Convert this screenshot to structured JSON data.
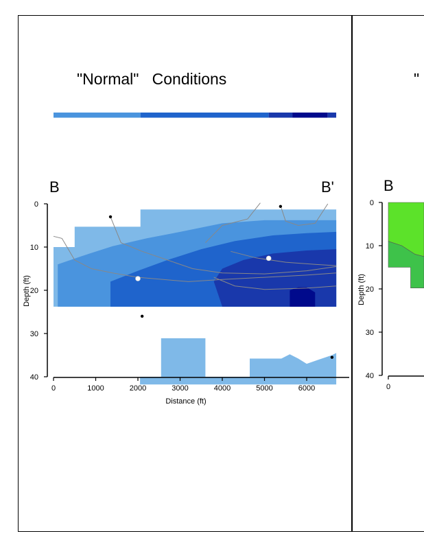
{
  "left_panel": {
    "title": "\"Normal\"   Conditions",
    "section_start": "B",
    "section_end": "B'"
  },
  "right_panel": {
    "title_fragment": "\"",
    "section_start": "B"
  },
  "colors": {
    "light": "#7fb9e8",
    "mid": "#4a94de",
    "blue": "#1f64cc",
    "dark": "#1938ab",
    "navy": "#000a8c",
    "contour": "#888888",
    "green_light": "#5ce22a",
    "green_dark": "#3ec24a"
  },
  "legend_bar": [
    {
      "color": "#4a94de",
      "from": 0,
      "to": 2060
    },
    {
      "color": "#1f64cc",
      "from": 2060,
      "to": 5100
    },
    {
      "color": "#1938ab",
      "from": 5100,
      "to": 5660
    },
    {
      "color": "#000a8c",
      "from": 5660,
      "to": 6500
    },
    {
      "color": "#1938ab",
      "from": 6500,
      "to": 6700
    }
  ],
  "chart_data": [
    {
      "type": "heatmap",
      "title": "\"Normal\"   Conditions",
      "xlabel": "Distance   (ft)",
      "ylabel": "Depth  (ft)",
      "xlim": [
        0,
        7000
      ],
      "ylim": [
        40,
        0
      ],
      "x_ticks": [
        "0",
        "1000",
        "2000",
        "3000",
        "4000",
        "5000",
        "6000"
      ],
      "y_ticks": [
        "0",
        "10",
        "20",
        "30",
        "40"
      ],
      "regions": [
        {
          "level": "light",
          "polygon": [
            [
              0,
              10
            ],
            [
              500,
              10
            ],
            [
              500,
              5.3
            ],
            [
              2060,
              5.3
            ],
            [
              2060,
              1.3
            ],
            [
              6700,
              1.3
            ],
            [
              6700,
              23.8
            ],
            [
              0,
              23.8
            ]
          ]
        },
        {
          "level": "mid",
          "polygon": [
            [
              100,
              23.8
            ],
            [
              100,
              14
            ],
            [
              700,
              12
            ],
            [
              1400,
              9.8
            ],
            [
              2200,
              8
            ],
            [
              3000,
              6.5
            ],
            [
              4000,
              4.5
            ],
            [
              5000,
              3.8
            ],
            [
              6000,
              3.8
            ],
            [
              6700,
              3.8
            ],
            [
              6700,
              23.8
            ]
          ]
        },
        {
          "level": "blue",
          "polygon": [
            [
              1350,
              23.8
            ],
            [
              1350,
              18
            ],
            [
              2000,
              15.5
            ],
            [
              2700,
              13
            ],
            [
              3500,
              10.5
            ],
            [
              4300,
              8.6
            ],
            [
              5200,
              7.3
            ],
            [
              6000,
              6.8
            ],
            [
              6700,
              6.5
            ],
            [
              6700,
              23.8
            ]
          ]
        },
        {
          "level": "dark",
          "polygon": [
            [
              4000,
              23.8
            ],
            [
              3800,
              18
            ],
            [
              4000,
              15
            ],
            [
              4500,
              13
            ],
            [
              5200,
              11.5
            ],
            [
              6000,
              10.8
            ],
            [
              6700,
              10.5
            ],
            [
              6700,
              23.8
            ]
          ]
        },
        {
          "level": "navy",
          "polygon": [
            [
              5600,
              23.8
            ],
            [
              5600,
              20
            ],
            [
              5800,
              19.3
            ],
            [
              6000,
              19.3
            ],
            [
              6200,
              20.5
            ],
            [
              6200,
              23.8
            ]
          ]
        },
        {
          "level": "light",
          "polygon": [
            [
              2050,
              40
            ],
            [
              2050,
              41.8
            ],
            [
              6700,
              41.8
            ],
            [
              6700,
              34.5
            ],
            [
              6600,
              35
            ],
            [
              6300,
              36
            ],
            [
              6000,
              37
            ],
            [
              5800,
              35.8
            ],
            [
              5600,
              34.8
            ],
            [
              5400,
              35.8
            ],
            [
              4650,
              35.8
            ],
            [
              4650,
              40
            ],
            [
              3600,
              40
            ],
            [
              3600,
              31.1
            ],
            [
              2550,
              31.1
            ],
            [
              2550,
              40
            ]
          ]
        }
      ],
      "contours": [
        [
          [
            0,
            7.5
          ],
          [
            200,
            8
          ],
          [
            500,
            13
          ],
          [
            900,
            15
          ],
          [
            1400,
            16
          ],
          [
            2000,
            17
          ],
          [
            2600,
            17.5
          ],
          [
            3200,
            18
          ],
          [
            4000,
            17.5
          ],
          [
            5000,
            17
          ],
          [
            6000,
            16.5
          ],
          [
            6700,
            16
          ]
        ],
        [
          [
            1350,
            3
          ],
          [
            1600,
            9
          ],
          [
            2100,
            11
          ],
          [
            2700,
            13
          ],
          [
            3300,
            15
          ],
          [
            4000,
            16
          ],
          [
            5000,
            16.2
          ],
          [
            6000,
            15.5
          ],
          [
            6700,
            14.5
          ]
        ],
        [
          [
            3600,
            9
          ],
          [
            4000,
            5
          ],
          [
            4600,
            3.5
          ],
          [
            4900,
            -0.2
          ]
        ],
        [
          [
            5400,
            1
          ],
          [
            5500,
            4
          ],
          [
            5800,
            5
          ],
          [
            6200,
            4.5
          ],
          [
            6500,
            0
          ]
        ],
        [
          [
            3800,
            17
          ],
          [
            4300,
            19
          ],
          [
            5000,
            19.8
          ],
          [
            6000,
            19.5
          ],
          [
            6700,
            19
          ]
        ],
        [
          [
            4200,
            11
          ],
          [
            4800,
            12.5
          ],
          [
            5500,
            13.5
          ],
          [
            6200,
            14
          ],
          [
            6700,
            14.3
          ]
        ]
      ],
      "markers": [
        {
          "x": 1350,
          "y": 3,
          "kind": "dark"
        },
        {
          "x": 5380,
          "y": 0.6,
          "kind": "dark"
        },
        {
          "x": 2000,
          "y": 17.3,
          "kind": "white"
        },
        {
          "x": 5100,
          "y": 12.6,
          "kind": "white"
        },
        {
          "x": 2100,
          "y": 26,
          "kind": "dark"
        },
        {
          "x": 6600,
          "y": 35.5,
          "kind": "dark"
        }
      ]
    },
    {
      "type": "heatmap",
      "ylabel": "Depth  (ft)",
      "ylim": [
        40,
        0
      ],
      "y_ticks": [
        "0",
        "10",
        "20",
        "30",
        "40"
      ],
      "x_ticks": [
        "0"
      ],
      "regions": [
        {
          "level": "green_light",
          "polygon": [
            [
              0,
              0
            ],
            [
              800,
              0
            ],
            [
              800,
              12.5
            ],
            [
              600,
              12
            ],
            [
              300,
              10
            ],
            [
              0,
              9
            ]
          ]
        },
        {
          "level": "green_dark",
          "polygon": [
            [
              0,
              9
            ],
            [
              300,
              10
            ],
            [
              600,
              12
            ],
            [
              800,
              12.5
            ],
            [
              800,
              19.8
            ],
            [
              500,
              19.8
            ],
            [
              500,
              15
            ],
            [
              0,
              15
            ]
          ]
        }
      ]
    }
  ]
}
